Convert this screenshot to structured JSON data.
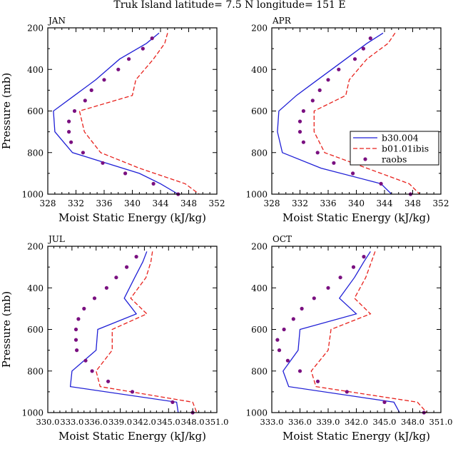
{
  "figure_title": "Truk Island  latitude= 7.5 N longitude= 151 E",
  "y_axis_label": "Pressure (mb)",
  "x_axis_label": "Moist Static Energy (kJ/kg)",
  "legend": {
    "entries": [
      {
        "label": "b30.004",
        "style": "solid",
        "color": "#1f1fd6"
      },
      {
        "label": "b01.01ibis",
        "style": "dashed",
        "color": "#e8211c"
      },
      {
        "label": "raobs",
        "style": "dot",
        "color": "#7a1080"
      }
    ]
  },
  "chart_data": [
    {
      "type": "line",
      "panel": "JAN",
      "xlim": [
        328,
        352
      ],
      "ylim": [
        1000,
        200
      ],
      "xticks": [
        328,
        332,
        336,
        340,
        344,
        348,
        352
      ],
      "xtick_labels": [
        "328",
        "332",
        "336",
        "340",
        "344",
        "348",
        "352"
      ],
      "yticks": [
        200,
        400,
        600,
        800,
        1000
      ],
      "series": [
        {
          "name": "b30.004",
          "p": [
            225,
            275,
            350,
            450,
            525,
            600,
            700,
            800,
            900,
            950,
            1000
          ],
          "x": [
            343.8,
            342.0,
            338.2,
            334.8,
            331.8,
            328.8,
            329.0,
            331.5,
            341.0,
            344.0,
            346.5
          ]
        },
        {
          "name": "b01.01ibis",
          "p": [
            225,
            275,
            350,
            450,
            525,
            600,
            700,
            800,
            875,
            950,
            1000
          ],
          "x": [
            345.0,
            344.6,
            343.0,
            340.5,
            340.0,
            332.5,
            333.2,
            335.5,
            341.0,
            347.5,
            349.5
          ]
        },
        {
          "name": "raobs",
          "p": [
            250,
            300,
            350,
            400,
            450,
            500,
            550,
            600,
            650,
            700,
            750,
            800,
            850,
            900,
            950,
            1000
          ],
          "x": [
            342.8,
            341.5,
            339.5,
            338.0,
            336.0,
            334.2,
            333.3,
            331.8,
            331.0,
            331.0,
            331.3,
            333.0,
            335.8,
            339.0,
            343.0,
            346.5
          ]
        }
      ]
    },
    {
      "type": "line",
      "panel": "APR",
      "xlim": [
        328,
        352
      ],
      "ylim": [
        1000,
        200
      ],
      "xticks": [
        328,
        332,
        336,
        340,
        344,
        348,
        352
      ],
      "xtick_labels": [
        "328",
        "332",
        "336",
        "340",
        "344",
        "348",
        "352"
      ],
      "yticks": [
        200,
        400,
        600,
        800,
        1000
      ],
      "series": [
        {
          "name": "b30.004",
          "p": [
            225,
            275,
            350,
            450,
            525,
            600,
            700,
            800,
            875,
            950,
            1000
          ],
          "x": [
            343.8,
            341.5,
            338.5,
            334.5,
            331.5,
            329.0,
            328.8,
            329.5,
            335.0,
            343.5,
            345.0
          ]
        },
        {
          "name": "b01.01ibis",
          "p": [
            225,
            275,
            350,
            450,
            525,
            600,
            700,
            800,
            875,
            950,
            1000
          ],
          "x": [
            345.5,
            344.5,
            341.5,
            339.0,
            338.5,
            334.0,
            334.0,
            335.5,
            341.5,
            347.5,
            349.0
          ]
        },
        {
          "name": "raobs",
          "p": [
            250,
            300,
            350,
            400,
            450,
            500,
            550,
            600,
            650,
            700,
            750,
            800,
            850,
            900,
            950,
            1000
          ],
          "x": [
            342.0,
            341.0,
            339.8,
            337.5,
            336.0,
            334.8,
            333.8,
            332.5,
            332.0,
            332.0,
            332.5,
            334.5,
            336.8,
            339.5,
            343.5,
            347.7
          ]
        }
      ]
    },
    {
      "type": "line",
      "panel": "JUL",
      "xlim": [
        330,
        351
      ],
      "ylim": [
        1000,
        200
      ],
      "xticks": [
        330,
        333,
        336,
        339,
        342,
        345,
        348,
        351
      ],
      "xtick_labels": [
        "330.0",
        "333.0",
        "336.0",
        "339.0",
        "342.0",
        "345.0",
        "348.0",
        "351.0"
      ],
      "yticks": [
        200,
        400,
        600,
        800,
        1000
      ],
      "series": [
        {
          "name": "b30.004",
          "p": [
            225,
            275,
            350,
            450,
            525,
            600,
            700,
            800,
            875,
            950,
            1000
          ],
          "x": [
            342.3,
            341.8,
            340.8,
            339.5,
            341.0,
            336.2,
            336.0,
            333.0,
            332.8,
            346.0,
            346.2
          ]
        },
        {
          "name": "b01.01ibis",
          "p": [
            225,
            275,
            350,
            450,
            525,
            600,
            700,
            800,
            875,
            950,
            1000
          ],
          "x": [
            343.0,
            342.8,
            342.2,
            340.3,
            342.3,
            338.0,
            338.0,
            336.0,
            336.5,
            348.0,
            348.5
          ]
        },
        {
          "name": "raobs",
          "p": [
            250,
            300,
            350,
            400,
            450,
            500,
            550,
            600,
            650,
            700,
            750,
            800,
            850,
            900,
            950,
            1000
          ],
          "x": [
            341.0,
            339.8,
            338.5,
            337.3,
            335.8,
            334.5,
            333.8,
            333.5,
            333.5,
            333.6,
            334.7,
            335.5,
            337.5,
            340.5,
            345.5,
            348.0
          ]
        }
      ]
    },
    {
      "type": "line",
      "panel": "OCT",
      "xlim": [
        333,
        351
      ],
      "ylim": [
        1000,
        200
      ],
      "xticks": [
        333,
        336,
        339,
        342,
        345,
        348,
        351
      ],
      "xtick_labels": [
        "333.0",
        "336.0",
        "339.0",
        "342.0",
        "345.0",
        "348.0",
        "351.0"
      ],
      "yticks": [
        200,
        400,
        600,
        800,
        1000
      ],
      "series": [
        {
          "name": "b30.004",
          "p": [
            225,
            275,
            350,
            450,
            525,
            600,
            700,
            800,
            875,
            950,
            1000
          ],
          "x": [
            343.5,
            342.8,
            341.8,
            340.2,
            342.0,
            336.0,
            335.8,
            334.2,
            334.8,
            346.0,
            346.6
          ]
        },
        {
          "name": "b01.01ibis",
          "p": [
            225,
            275,
            350,
            450,
            525,
            600,
            700,
            800,
            875,
            950,
            1000
          ],
          "x": [
            344.0,
            343.6,
            343.0,
            341.8,
            343.5,
            339.3,
            339.0,
            337.2,
            337.7,
            348.5,
            349.5
          ]
        },
        {
          "name": "raobs",
          "p": [
            250,
            300,
            350,
            400,
            450,
            500,
            550,
            600,
            650,
            700,
            750,
            800,
            850,
            900,
            950,
            1000
          ],
          "x": [
            342.8,
            341.7,
            340.3,
            339.0,
            337.5,
            336.2,
            335.3,
            334.3,
            333.6,
            333.8,
            334.7,
            336.0,
            337.9,
            341.0,
            345.0,
            349.2
          ]
        }
      ]
    }
  ]
}
